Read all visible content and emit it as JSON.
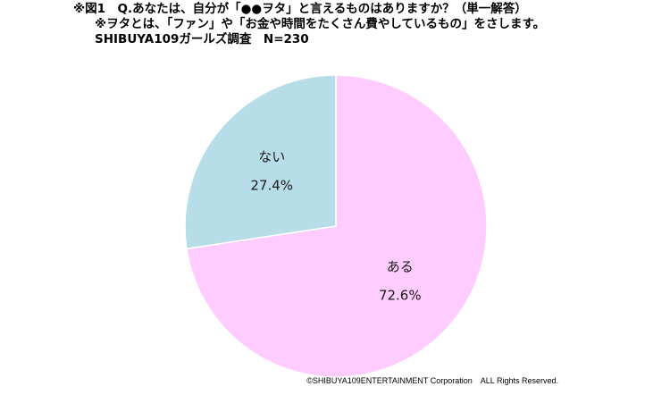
{
  "title_lines": [
    "※図1　Q.あなたは、自分が「●●ヲタ」と言えるものはありますか？（単一解答）",
    "※ヲタとは、「ファン」や「お金や時間をたくさん費やしているもの」をさします。",
    "SHIBUYA109ガールズ調査　N=230"
  ],
  "copyright": "©SHIBUYA109ENTERTAINMENT Corporation　ALL Rights Reserved.",
  "colors": {
    "aru": "#ffccff",
    "nai": "#b7dde8",
    "edge": "#ffffff"
  },
  "chart_data": {
    "type": "pie",
    "start_angle_deg": 0,
    "direction": "clockwise",
    "slices": [
      {
        "label": "ある",
        "value": 72.6,
        "value_text": "72.6%"
      },
      {
        "label": "ない",
        "value": 27.4,
        "value_text": "27.4%"
      }
    ]
  }
}
